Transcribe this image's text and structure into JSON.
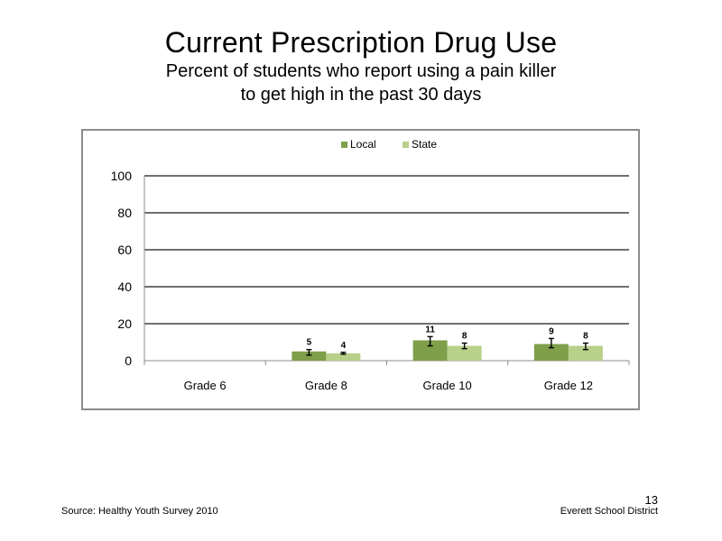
{
  "slide": {
    "title": "Current Prescription Drug Use",
    "subtitle_line1": "Percent of students who report using a pain killer",
    "subtitle_line2": "to get high in the past 30 days",
    "source": "Source: Healthy Youth Survey 2010",
    "organization": "Everett School District",
    "page_number": "13"
  },
  "chart_data": {
    "type": "bar",
    "categories": [
      "Grade 6",
      "Grade 8",
      "Grade 10",
      "Grade 12"
    ],
    "series": [
      {
        "name": "Local",
        "color": "#7f9f4a",
        "values": [
          null,
          5,
          11,
          9
        ],
        "labels": [
          "",
          "5",
          "11",
          "9"
        ],
        "error": [
          null,
          [
            3,
            6
          ],
          [
            8,
            13
          ],
          [
            7,
            12
          ]
        ]
      },
      {
        "name": "State",
        "color": "#b8d08a",
        "values": [
          null,
          4,
          8,
          8
        ],
        "labels": [
          "",
          "4",
          "8",
          "8"
        ],
        "error": [
          null,
          [
            3.5,
            4.5
          ],
          [
            6.5,
            9.5
          ],
          [
            6,
            9.5
          ]
        ]
      }
    ],
    "yticks": [
      "0",
      "20",
      "40",
      "60",
      "80",
      "100"
    ],
    "ylim": [
      0,
      100
    ],
    "grid": true,
    "legend": "top-center"
  }
}
